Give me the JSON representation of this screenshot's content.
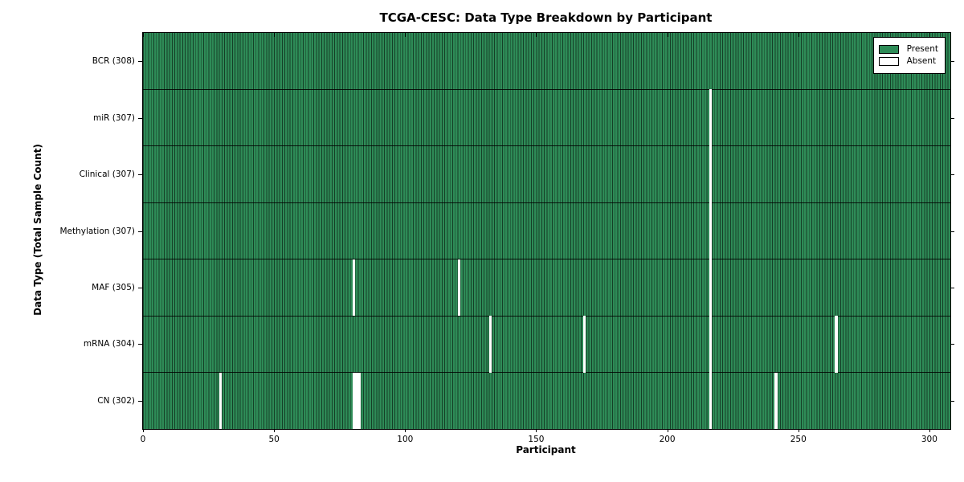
{
  "figure": {
    "title": "TCGA-CESC: Data Type Breakdown by Participant",
    "xlabel": "Participant",
    "ylabel": "Data Type (Total Sample Count)"
  },
  "legend": {
    "present_label": "Present",
    "absent_label": "Absent"
  },
  "colors": {
    "present": "#2e8b57",
    "present_edge": "#153f27",
    "absent": "#ffffff",
    "axis": "#000000",
    "background": "#ffffff"
  },
  "chart_data": {
    "type": "heatmap",
    "title": "TCGA-CESC: Data Type Breakdown by Participant",
    "xlabel": "Participant",
    "ylabel": "Data Type (Total Sample Count)",
    "n_participants": 308,
    "xlim": [
      0,
      308
    ],
    "x_ticks": [
      0,
      50,
      100,
      150,
      200,
      250,
      300
    ],
    "grid": false,
    "legend_entries": [
      "Present",
      "Absent"
    ],
    "legend_position": "upper right",
    "rows": [
      {
        "label": "BCR",
        "total": 308,
        "absent_participants": []
      },
      {
        "label": "miR",
        "total": 307,
        "absent_participants": [
          216
        ]
      },
      {
        "label": "Clinical",
        "total": 307,
        "absent_participants": [
          216
        ]
      },
      {
        "label": "Methylation",
        "total": 307,
        "absent_participants": [
          216
        ]
      },
      {
        "label": "MAF",
        "total": 305,
        "absent_participants": [
          80,
          120,
          216
        ]
      },
      {
        "label": "mRNA",
        "total": 304,
        "absent_participants": [
          132,
          168,
          216,
          264
        ]
      },
      {
        "label": "CN",
        "total": 302,
        "absent_participants": [
          29,
          80,
          81,
          82,
          216,
          241
        ]
      }
    ]
  }
}
